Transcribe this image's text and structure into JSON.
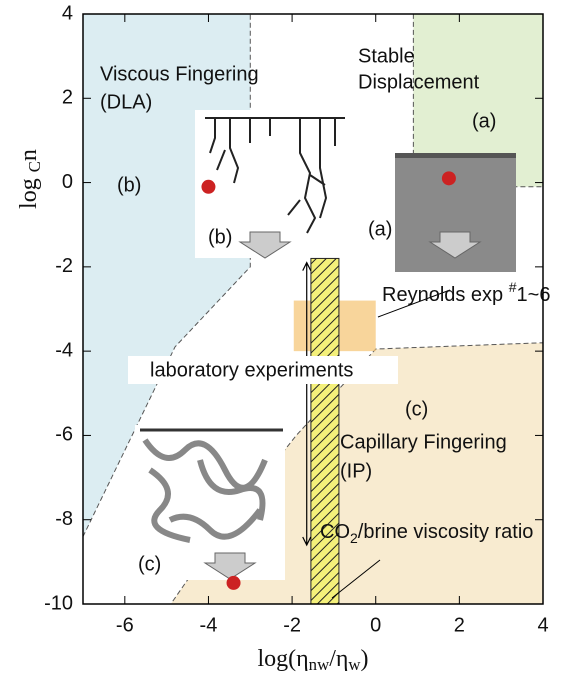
{
  "chart_data": {
    "type": "region",
    "xlabel_parts": [
      "log(η",
      "nw",
      "/η",
      "w",
      ")"
    ],
    "ylabel_parts": [
      "log ",
      "C",
      "n"
    ],
    "xlim": [
      -7,
      4
    ],
    "xticks": [
      -6,
      -4,
      -2,
      0,
      2,
      4
    ],
    "ylim": [
      -10,
      4
    ],
    "yticks": [
      -10,
      -8,
      -6,
      -4,
      -2,
      0,
      2,
      4
    ],
    "regions": [
      {
        "name": "Viscous Fingering",
        "color": "#dcedf2",
        "x": [
          -7,
          -3,
          -3,
          -4.8,
          -7
        ],
        "y": [
          4,
          4,
          -2,
          -3.9,
          -8.4
        ]
      },
      {
        "name": "Stable",
        "color": "#e2efd2",
        "x": [
          0.9,
          4,
          4,
          0.9
        ],
        "y": [
          4,
          4,
          -0.1,
          -0.1
        ]
      },
      {
        "name": "Capillary Fingering",
        "color": "#f8ebd0",
        "x": [
          -4.9,
          4,
          4,
          0,
          -1.9,
          -3.5
        ],
        "y": [
          -10,
          -10,
          -3.8,
          -3.95,
          -6,
          -8
        ]
      }
    ],
    "region_labels": [
      "(DLA)",
      "Displacement",
      "(IP)"
    ],
    "region_tags": [
      "(b)",
      "(a)",
      "(c)"
    ],
    "image_tags": [
      "(b)",
      "(a)",
      "(c)"
    ],
    "points": {
      "color": "#cc2222",
      "x": [
        -4,
        1.75,
        -3.4
      ],
      "y": [
        -0.1,
        0.1,
        -9.5
      ]
    },
    "reynolds": {
      "color": "#f5c77a",
      "x": [
        -1.96,
        0
      ],
      "y": [
        -4,
        -2.8
      ],
      "label_parts": [
        "Reynolds exp ",
        "#",
        "1~6"
      ]
    },
    "co2_band": {
      "x": [
        -1.55,
        -0.88
      ],
      "y": [
        -10,
        -1.8
      ],
      "label_parts": [
        "CO",
        "2",
        "/brine viscosity ratio"
      ]
    },
    "lab_range": {
      "x": -1.65,
      "y": [
        -8.6,
        -1.9
      ],
      "label": "laboratory experiments"
    }
  }
}
